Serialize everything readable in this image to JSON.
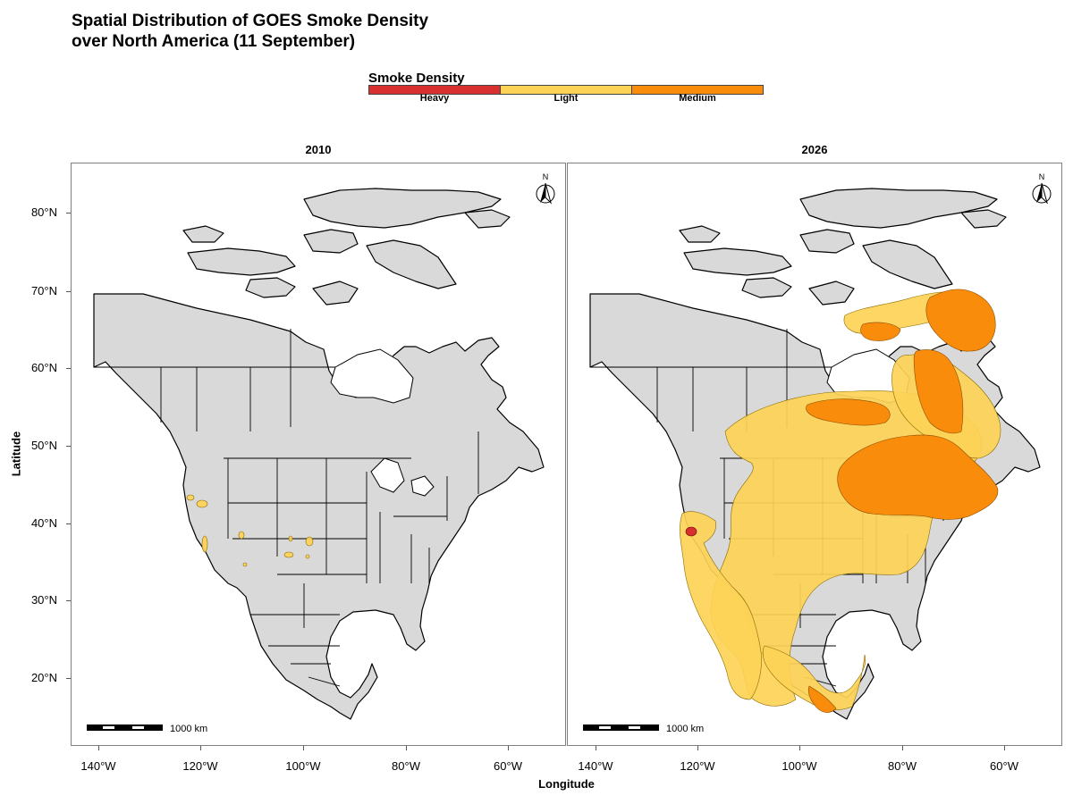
{
  "title_lines": [
    "Spatial Distribution of GOES Smoke Density",
    "over North America (11 September)"
  ],
  "legend": {
    "title": "Smoke Density",
    "items": [
      {
        "label": "Heavy",
        "color": "#D7302F"
      },
      {
        "label": "Light",
        "color": "#FDD357"
      },
      {
        "label": "Medium",
        "color": "#F98C0A"
      }
    ]
  },
  "panels": [
    {
      "label": "2010",
      "north_label": "N",
      "scale_label": "1000 km"
    },
    {
      "label": "2026",
      "north_label": "N",
      "scale_label": "1000 km"
    }
  ],
  "axes": {
    "xlabel": "Longitude",
    "ylabel": "Latitude",
    "xticks": [
      "140°W",
      "120°W",
      "100°W",
      "80°W",
      "60°W"
    ],
    "yticks": [
      "80°N",
      "70°N",
      "60°N",
      "50°N",
      "40°N",
      "30°N",
      "20°N"
    ]
  },
  "colors": {
    "land": "#D9D9D9",
    "border": "#000000",
    "water": "#FFFFFF"
  }
}
